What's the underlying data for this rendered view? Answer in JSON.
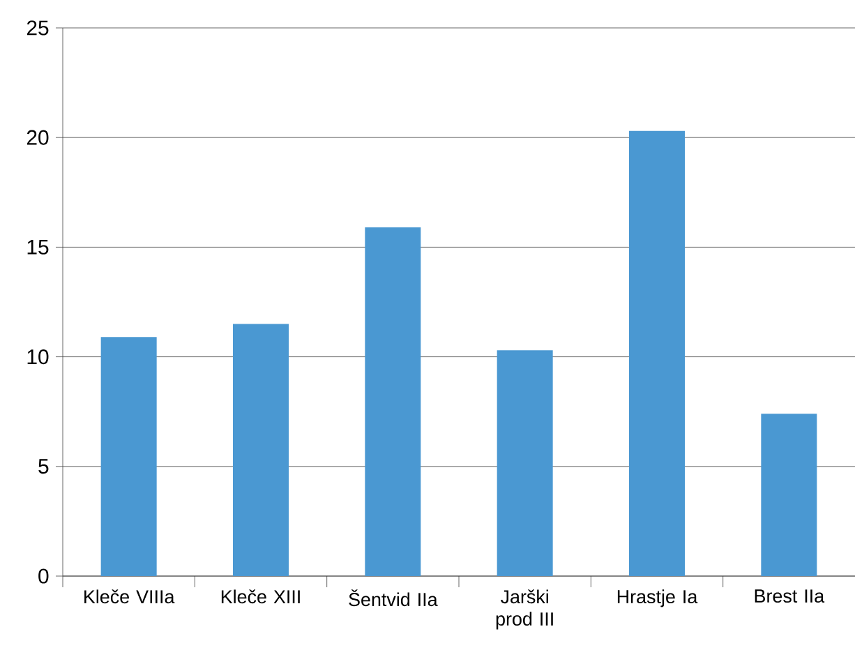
{
  "chart_data": {
    "type": "bar",
    "categories": [
      "Kleče VIIIa",
      "Kleče XIII",
      "Šentvid IIa",
      "Jarški prod III",
      "Hrastje Ia",
      "Brest IIa"
    ],
    "values": [
      10.9,
      11.5,
      15.9,
      10.3,
      20.3,
      7.4
    ],
    "color": "#4a98d2",
    "ylim": [
      0,
      25
    ],
    "yticks": [
      0,
      5,
      10,
      15,
      20,
      25
    ],
    "grid": "y"
  }
}
